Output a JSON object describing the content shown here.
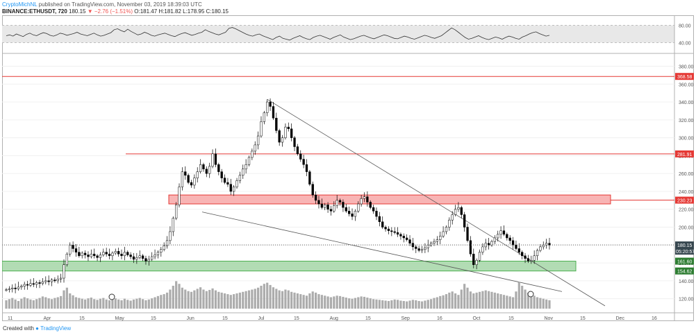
{
  "header": {
    "author": "CryptoMichNL",
    "published_text": "published on TradingView.com, November 03, 2019 18:39:03 UTC"
  },
  "symbol_bar": {
    "symbol": "BINANCE:ETHUSDT, 720",
    "last": "180.15",
    "change": "▼ −2.76 (−1.51%)",
    "open": "O:181.47",
    "high": "H:181.82",
    "low": "L:178.95",
    "close": "C:180.15"
  },
  "footer": {
    "created_with": "Created with",
    "brand": "TradingView"
  },
  "colors": {
    "resistance": "#e53935",
    "resistance_zone": "#f8b4b4",
    "support_zone": "#a5d6a7",
    "candle": "#000000",
    "volume": "#9e9e9e",
    "rsi_line": "#333333",
    "rsi_band": "#e8e8e8",
    "last_price_badge": "#37474f"
  },
  "chart_data": [
    {
      "type": "line",
      "panel": "RSI",
      "ylim": [
        20,
        100
      ],
      "levels": [
        80,
        40
      ],
      "y_tick_labels": [
        "80.00",
        "40.00"
      ],
      "grid": true,
      "series": [
        {
          "values": [
            56,
            58,
            55,
            60,
            57,
            54,
            59,
            62,
            58,
            56,
            60,
            63,
            61,
            57,
            55,
            58,
            62,
            60,
            57,
            59,
            61,
            64,
            60,
            58,
            56,
            59,
            62,
            58,
            55,
            57,
            60,
            63,
            70,
            72,
            68,
            65,
            71,
            66,
            62,
            58,
            60,
            64,
            61,
            57,
            55,
            58,
            60,
            62,
            59,
            56,
            54,
            58,
            61,
            63,
            60,
            57,
            59,
            62,
            64,
            70,
            66,
            63,
            60,
            58,
            61,
            64,
            73,
            75,
            72,
            68,
            64,
            60,
            57,
            55,
            58,
            60,
            56,
            53,
            50,
            47,
            52,
            55,
            50,
            48,
            46,
            50,
            53,
            56,
            52,
            49,
            47,
            52,
            55,
            57,
            54,
            51,
            48,
            52,
            55,
            58,
            53,
            50,
            47,
            49,
            52,
            55,
            57,
            54,
            51,
            49,
            52,
            55,
            58,
            56,
            53,
            50,
            49,
            52,
            55,
            53,
            50,
            48,
            51,
            54,
            57,
            55,
            52,
            50,
            53,
            56,
            62,
            68,
            74,
            70,
            64,
            58,
            52,
            48,
            50,
            53,
            56,
            52,
            49,
            47,
            50,
            53,
            51,
            48,
            52,
            55,
            53,
            50,
            48,
            53,
            56,
            60,
            63,
            65,
            61,
            58,
            55,
            57
          ]
        }
      ]
    },
    {
      "type": "candlestick",
      "panel": "price",
      "ylim": [
        105,
        392
      ],
      "y_ticks": [
        120,
        140,
        160,
        180,
        200,
        220,
        240,
        260,
        280,
        300,
        320,
        340,
        360,
        380
      ],
      "y_tick_labels": [
        "120.00",
        "140.00",
        "160.00",
        "180.00",
        "200.00",
        "220.00",
        "240.00",
        "260.00",
        "280.00",
        "300.00",
        "320.00",
        "340.00",
        "360.00",
        "380.00"
      ],
      "x_tick_labels": [
        "11",
        "Apr",
        "15",
        "May",
        "15",
        "Jun",
        "15",
        "Jul",
        "15",
        "Aug",
        "15",
        "Sep",
        "16",
        "Oct",
        "15",
        "Nov",
        "15",
        "Dec",
        "16"
      ],
      "grid": true,
      "close": [
        130,
        131,
        132,
        131,
        133,
        134,
        136,
        135,
        137,
        136,
        138,
        137,
        139,
        140,
        139,
        141,
        140,
        142,
        143,
        158,
        170,
        180,
        176,
        172,
        168,
        171,
        169,
        167,
        170,
        168,
        166,
        169,
        172,
        170,
        168,
        171,
        173,
        170,
        168,
        172,
        169,
        167,
        164,
        166,
        168,
        165,
        162,
        164,
        167,
        169,
        172,
        175,
        179,
        185,
        195,
        210,
        225,
        245,
        262,
        258,
        250,
        247,
        255,
        262,
        270,
        265,
        260,
        268,
        282,
        270,
        262,
        255,
        250,
        248,
        240,
        245,
        252,
        258,
        265,
        270,
        278,
        285,
        292,
        302,
        318,
        328,
        340,
        335,
        322,
        308,
        295,
        300,
        312,
        310,
        300,
        290,
        282,
        276,
        270,
        262,
        248,
        236,
        230,
        226,
        222,
        225,
        220,
        218,
        224,
        230,
        228,
        222,
        218,
        215,
        212,
        218,
        226,
        232,
        234,
        228,
        222,
        218,
        212,
        206,
        200,
        198,
        196,
        195,
        194,
        192,
        190,
        188,
        186,
        182,
        178,
        176,
        174,
        175,
        177,
        180,
        182,
        184,
        186,
        190,
        195,
        200,
        208,
        214,
        220,
        222,
        214,
        200,
        185,
        170,
        158,
        163,
        172,
        178,
        182,
        180,
        184,
        188,
        192,
        196,
        192,
        188,
        185,
        180,
        176,
        172,
        168,
        165,
        162,
        163,
        168,
        174,
        178,
        180,
        182,
        180
      ],
      "volume": [
        22,
        25,
        28,
        24,
        20,
        26,
        30,
        27,
        24,
        22,
        25,
        28,
        32,
        30,
        27,
        25,
        28,
        30,
        33,
        48,
        55,
        40,
        35,
        30,
        28,
        26,
        24,
        27,
        29,
        25,
        23,
        26,
        28,
        24,
        22,
        25,
        27,
        24,
        22,
        26,
        23,
        21,
        24,
        26,
        28,
        25,
        22,
        24,
        27,
        30,
        33,
        36,
        38,
        42,
        50,
        60,
        72,
        65,
        55,
        50,
        46,
        44,
        48,
        52,
        56,
        50,
        46,
        49,
        53,
        48,
        44,
        42,
        40,
        38,
        36,
        38,
        40,
        42,
        44,
        46,
        48,
        50,
        52,
        55,
        60,
        65,
        68,
        62,
        56,
        52,
        48,
        46,
        50,
        48,
        44,
        42,
        40,
        38,
        36,
        34,
        40,
        45,
        42,
        38,
        36,
        34,
        32,
        30,
        32,
        34,
        33,
        31,
        29,
        27,
        26,
        28,
        30,
        32,
        31,
        29,
        27,
        25,
        24,
        23,
        22,
        21,
        20,
        22,
        24,
        23,
        21,
        20,
        19,
        21,
        23,
        22,
        20,
        19,
        21,
        23,
        25,
        28,
        30,
        33,
        35,
        38,
        42,
        45,
        40,
        36,
        50,
        65,
        55,
        45,
        40,
        42,
        44,
        46,
        48,
        46,
        44,
        42,
        40,
        38,
        36,
        34,
        32,
        30,
        45,
        70,
        60,
        50,
        42,
        38,
        34,
        30,
        28,
        26,
        24,
        22
      ],
      "horizontal_levels": [
        {
          "price": 368.58,
          "label": "368.58"
        },
        {
          "price": 281.91,
          "label": "281.91"
        },
        {
          "price": 230.23,
          "label": "230.23"
        }
      ],
      "zones": [
        {
          "name": "resistance-zone",
          "from": 226,
          "to": 236
        },
        {
          "name": "support-zone",
          "from": 151,
          "to": 162
        }
      ],
      "support_labels": [
        "161.60",
        "154.62"
      ],
      "last_price": "180.15",
      "countdown": "05:20:57"
    }
  ]
}
